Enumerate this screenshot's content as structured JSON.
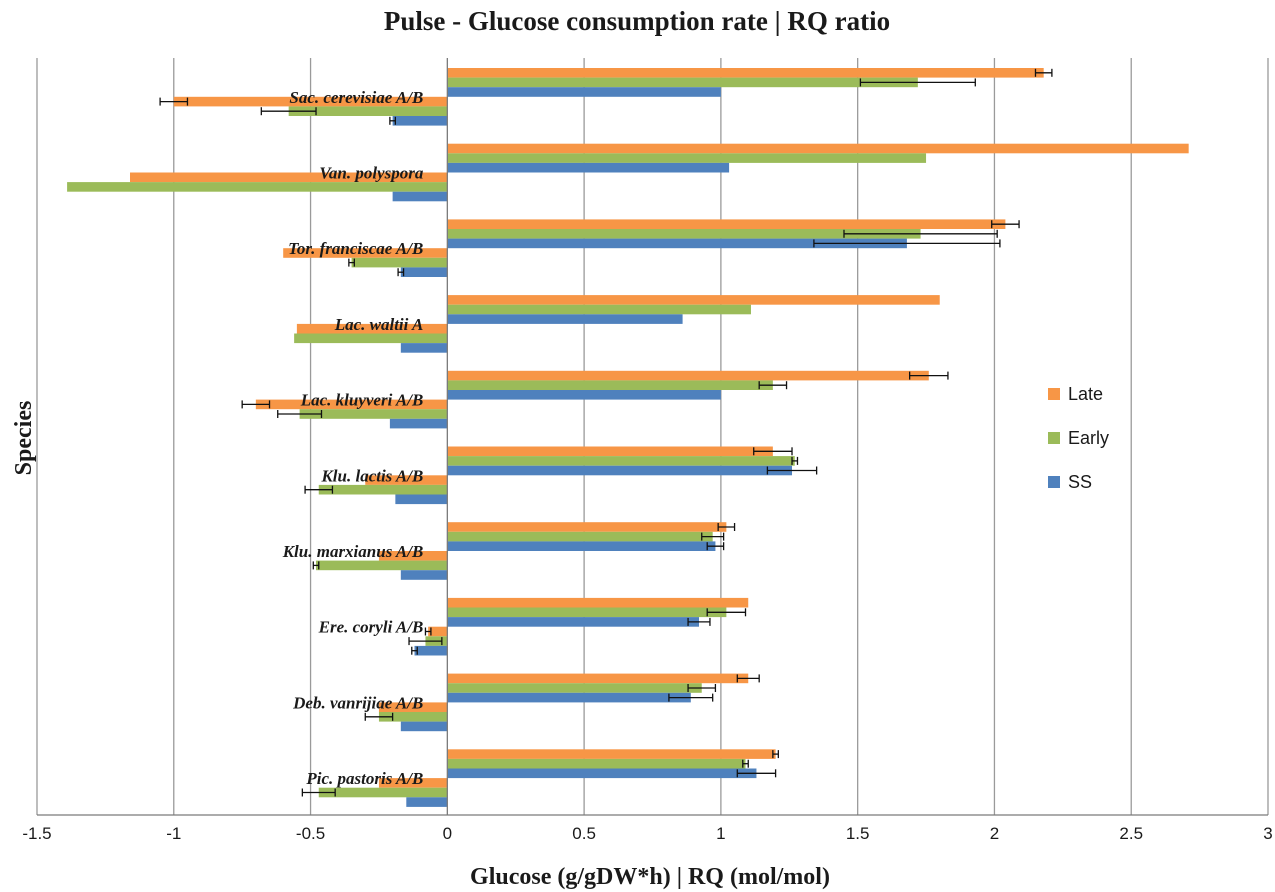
{
  "chart_data": {
    "type": "bar",
    "orientation": "horizontal",
    "title": "Pulse - Glucose consumption rate | RQ ratio",
    "xlabel": "Glucose (g/gDW*h) | RQ (mol/mol)",
    "ylabel": "Species",
    "xlim": [
      -1.5,
      3
    ],
    "xticks": [
      -1.5,
      -1,
      -0.5,
      0,
      0.5,
      1,
      1.5,
      2,
      2.5,
      3
    ],
    "xtick_labels": [
      "-1.5",
      "-1",
      "-0.5",
      "0",
      "0.5",
      "1",
      "1.5",
      "2",
      "2.5",
      "3"
    ],
    "grid": "vertical major gridlines",
    "legend_position": "right",
    "categories": [
      "Sac. cerevisiae A/B",
      "Van. polyspora",
      "Tor. franciscae A/B",
      "Lac. waltii A",
      "Lac. kluyveri A/B",
      "Klu. lactis A/B",
      "Klu. marxianus A/B",
      "Ere. coryli A/B",
      "Deb. vanrijiae A/B",
      "Pic. pastoris A/B"
    ],
    "series": [
      {
        "name": "Late",
        "color": "#F79646",
        "rq": [
          2.18,
          2.71,
          2.04,
          1.8,
          1.76,
          1.19,
          1.02,
          1.1,
          1.1,
          1.2
        ],
        "rq_err": [
          0.03,
          null,
          0.05,
          null,
          0.07,
          0.07,
          0.03,
          null,
          0.04,
          0.01
        ],
        "glucose": [
          -1.0,
          -1.16,
          -0.6,
          -0.55,
          -0.7,
          -0.3,
          -0.25,
          -0.07,
          -0.25,
          -0.25
        ],
        "glucose_err": [
          0.05,
          null,
          null,
          null,
          0.05,
          null,
          null,
          0.01,
          null,
          null
        ]
      },
      {
        "name": "Early",
        "color": "#9BBB59",
        "rq": [
          1.72,
          1.75,
          1.73,
          1.11,
          1.19,
          1.27,
          0.97,
          1.02,
          0.93,
          1.09
        ],
        "rq_err": [
          0.21,
          null,
          0.28,
          null,
          0.05,
          0.01,
          0.04,
          0.07,
          0.05,
          0.01
        ],
        "glucose": [
          -0.58,
          -1.39,
          -0.35,
          -0.56,
          -0.54,
          -0.47,
          -0.48,
          -0.08,
          -0.25,
          -0.47
        ],
        "glucose_err": [
          0.1,
          null,
          0.01,
          null,
          0.08,
          0.05,
          0.01,
          0.06,
          0.05,
          0.06
        ]
      },
      {
        "name": "SS",
        "color": "#4F81BD",
        "rq": [
          1.0,
          1.03,
          1.68,
          0.86,
          1.0,
          1.26,
          0.98,
          0.92,
          0.89,
          1.13
        ],
        "rq_err": [
          null,
          null,
          0.34,
          null,
          null,
          0.09,
          0.03,
          0.04,
          0.08,
          0.07
        ],
        "glucose": [
          -0.2,
          -0.2,
          -0.17,
          -0.17,
          -0.21,
          -0.19,
          -0.17,
          -0.12,
          -0.17,
          -0.15
        ],
        "glucose_err": [
          0.01,
          null,
          0.01,
          null,
          null,
          null,
          null,
          0.01,
          null,
          null
        ]
      }
    ]
  }
}
